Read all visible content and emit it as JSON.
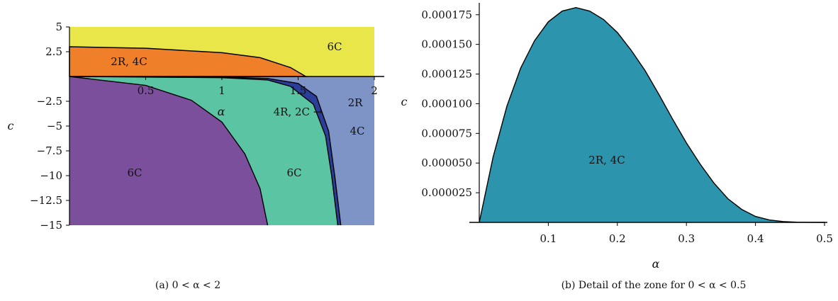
{
  "chart_data": [
    {
      "type": "area",
      "xlabel": "α",
      "ylabel": "c",
      "xlim": [
        0,
        2
      ],
      "ylim": [
        -15,
        5
      ],
      "x_ticks": [
        "0.5",
        "1",
        "1.5",
        "2"
      ],
      "y_ticks": [
        "5",
        "2.5",
        "−2.5",
        "−5",
        "−7.5",
        "−10",
        "−12.5",
        "−15"
      ],
      "y_tick_values": [
        5,
        2.5,
        -2.5,
        -5,
        -7.5,
        -10,
        -12.5,
        -15
      ],
      "x_tick_values": [
        0.5,
        1,
        1.5,
        2
      ],
      "regions": [
        {
          "label": "6C",
          "color": "#e9e64a"
        },
        {
          "label": "2R, 4C",
          "color": "#f07f2a"
        },
        {
          "label": "6C",
          "color": "#7b4f9c"
        },
        {
          "label": "6C",
          "color": "#5ac4a3"
        },
        {
          "label": "4R, 2C →",
          "color": "#2a3e9a"
        },
        {
          "label": "2R",
          "color": "#7e94c6"
        },
        {
          "label": "4C",
          "color": "#7e94c6"
        }
      ],
      "boundaries": {
        "orange_top": [
          [
            0,
            3.0
          ],
          [
            0.5,
            2.85
          ],
          [
            1.0,
            2.4
          ],
          [
            1.25,
            1.9
          ],
          [
            1.45,
            0.9
          ],
          [
            1.55,
            0
          ]
        ],
        "purple_edge": [
          [
            0,
            0
          ],
          [
            0.5,
            -0.9
          ],
          [
            0.8,
            -2.4
          ],
          [
            1.0,
            -4.6
          ],
          [
            1.15,
            -7.8
          ],
          [
            1.25,
            -11.3
          ],
          [
            1.3,
            -15
          ]
        ],
        "upper_curve": [
          [
            0,
            0
          ],
          [
            1.0,
            -0.05
          ],
          [
            1.3,
            -0.2
          ],
          [
            1.5,
            -0.7
          ],
          [
            1.62,
            -2.0
          ],
          [
            1.7,
            -5.5
          ],
          [
            1.74,
            -10
          ],
          [
            1.78,
            -15
          ]
        ],
        "lower_curve": [
          [
            0,
            0
          ],
          [
            1.0,
            -0.12
          ],
          [
            1.3,
            -0.35
          ],
          [
            1.45,
            -1.0
          ],
          [
            1.6,
            -2.8
          ],
          [
            1.68,
            -6.0
          ],
          [
            1.72,
            -10
          ],
          [
            1.76,
            -15
          ]
        ]
      },
      "caption": "(a)  0 < α < 2"
    },
    {
      "type": "area",
      "xlabel": "α",
      "ylabel": "c",
      "xlim": [
        0,
        0.5
      ],
      "ylim": [
        0,
        0.000185
      ],
      "x_ticks": [
        "0.1",
        "0.2",
        "0.3",
        "0.4",
        "0.5"
      ],
      "x_tick_values": [
        0.1,
        0.2,
        0.3,
        0.4,
        0.5
      ],
      "y_ticks": [
        "0.000025",
        "0.000050",
        "0.000075",
        "0.000100",
        "0.000125",
        "0.000150",
        "0.000175"
      ],
      "y_tick_values": [
        2.5e-05,
        5e-05,
        7.5e-05,
        0.0001,
        0.000125,
        0.00015,
        0.000175
      ],
      "fill_color": "#2c94ac",
      "region_label": "2R, 4C",
      "series": [
        {
          "x": [
            0,
            0.02,
            0.04,
            0.06,
            0.08,
            0.1,
            0.12,
            0.14,
            0.16,
            0.18,
            0.2,
            0.22,
            0.24,
            0.26,
            0.28,
            0.3,
            0.32,
            0.34,
            0.36,
            0.38,
            0.4,
            0.42,
            0.44,
            0.46,
            0.48,
            0.5
          ],
          "values": [
            0,
            5.5e-05,
            9.8e-05,
            0.00013,
            0.000153,
            0.000169,
            0.000178,
            0.000181,
            0.000178,
            0.000171,
            0.00016,
            0.000145,
            0.000128,
            0.000108,
            8.7e-05,
            6.7e-05,
            4.9e-05,
            3.3e-05,
            2e-05,
            1.1e-05,
            5e-06,
            2e-06,
            7e-07,
            2e-07,
            3e-08,
            0
          ]
        }
      ],
      "caption": "(b)  Detail of the zone for 0 < α < 0.5"
    }
  ]
}
